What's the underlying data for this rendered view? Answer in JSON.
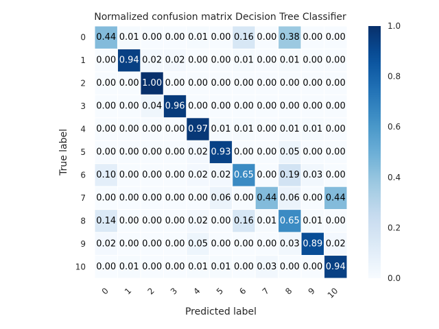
{
  "chart_data": {
    "type": "heatmap",
    "title": "Normalized confusion matrix Decision Tree Classifier",
    "xlabel": "Predicted label",
    "ylabel": "True label",
    "x_categories": [
      "0",
      "1",
      "2",
      "3",
      "4",
      "5",
      "6",
      "7",
      "8",
      "9",
      "10"
    ],
    "y_categories": [
      "0",
      "1",
      "2",
      "3",
      "4",
      "5",
      "6",
      "7",
      "8",
      "9",
      "10"
    ],
    "values": [
      [
        0.44,
        0.01,
        0.0,
        0.0,
        0.01,
        0.0,
        0.16,
        0.0,
        0.38,
        0.0,
        0.0
      ],
      [
        0.0,
        0.94,
        0.02,
        0.02,
        0.0,
        0.0,
        0.01,
        0.0,
        0.01,
        0.0,
        0.0
      ],
      [
        0.0,
        0.0,
        1.0,
        0.0,
        0.0,
        0.0,
        0.0,
        0.0,
        0.0,
        0.0,
        0.0
      ],
      [
        0.0,
        0.0,
        0.04,
        0.96,
        0.0,
        0.0,
        0.0,
        0.0,
        0.0,
        0.0,
        0.0
      ],
      [
        0.0,
        0.0,
        0.0,
        0.0,
        0.97,
        0.01,
        0.01,
        0.0,
        0.01,
        0.01,
        0.0
      ],
      [
        0.0,
        0.0,
        0.0,
        0.0,
        0.02,
        0.93,
        0.0,
        0.0,
        0.05,
        0.0,
        0.0
      ],
      [
        0.1,
        0.0,
        0.0,
        0.0,
        0.02,
        0.02,
        0.65,
        0.0,
        0.19,
        0.03,
        0.0
      ],
      [
        0.0,
        0.0,
        0.0,
        0.0,
        0.0,
        0.06,
        0.0,
        0.44,
        0.06,
        0.0,
        0.44
      ],
      [
        0.14,
        0.0,
        0.0,
        0.0,
        0.02,
        0.0,
        0.16,
        0.01,
        0.65,
        0.01,
        0.0
      ],
      [
        0.02,
        0.0,
        0.0,
        0.0,
        0.05,
        0.0,
        0.0,
        0.0,
        0.03,
        0.89,
        0.02
      ],
      [
        0.0,
        0.01,
        0.0,
        0.0,
        0.01,
        0.01,
        0.0,
        0.03,
        0.0,
        0.0,
        0.94
      ]
    ],
    "colormap": "Blues",
    "vmin": 0.0,
    "vmax": 1.0,
    "colorbar_ticks": [
      0.0,
      0.2,
      0.4,
      0.6,
      0.8,
      1.0
    ],
    "colorbar_tick_labels": [
      "0.0",
      "0.2",
      "0.4",
      "0.6",
      "0.8",
      "1.0"
    ],
    "value_format": "0.00",
    "text_color_dark": "#000000",
    "text_color_light": "#ffffff",
    "grid": true,
    "grid_color": "#ffffff",
    "colorbar_location": "right"
  }
}
